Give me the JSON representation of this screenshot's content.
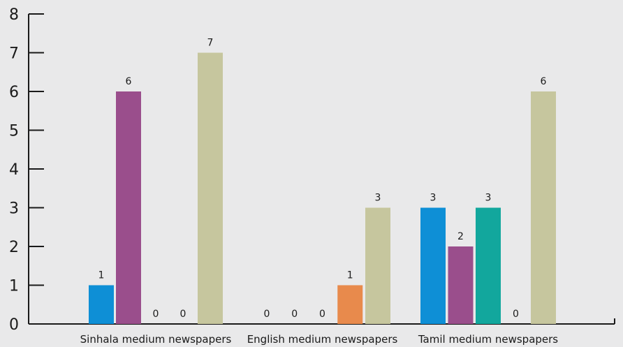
{
  "chart_data": {
    "type": "bar",
    "categories": [
      "Sinhala medium newspapers",
      "English medium newspapers",
      "Tamil medium newspapers"
    ],
    "series": [
      {
        "color": "#0e8fd6",
        "values": [
          1,
          0,
          3
        ]
      },
      {
        "color": "#9a4e8c",
        "values": [
          6,
          0,
          2
        ]
      },
      {
        "color": "#12a79d",
        "values": [
          0,
          0,
          3
        ]
      },
      {
        "color": "#e88a4c",
        "values": [
          0,
          1,
          0
        ]
      },
      {
        "color": "#c6c69e",
        "values": [
          7,
          3,
          6
        ]
      }
    ],
    "ylim": [
      0,
      8
    ],
    "yticks": [
      0,
      1,
      2,
      3,
      4,
      5,
      6,
      7,
      8
    ],
    "xlabel": "",
    "ylabel": "",
    "title": "",
    "grid": false,
    "data_labels": true
  }
}
